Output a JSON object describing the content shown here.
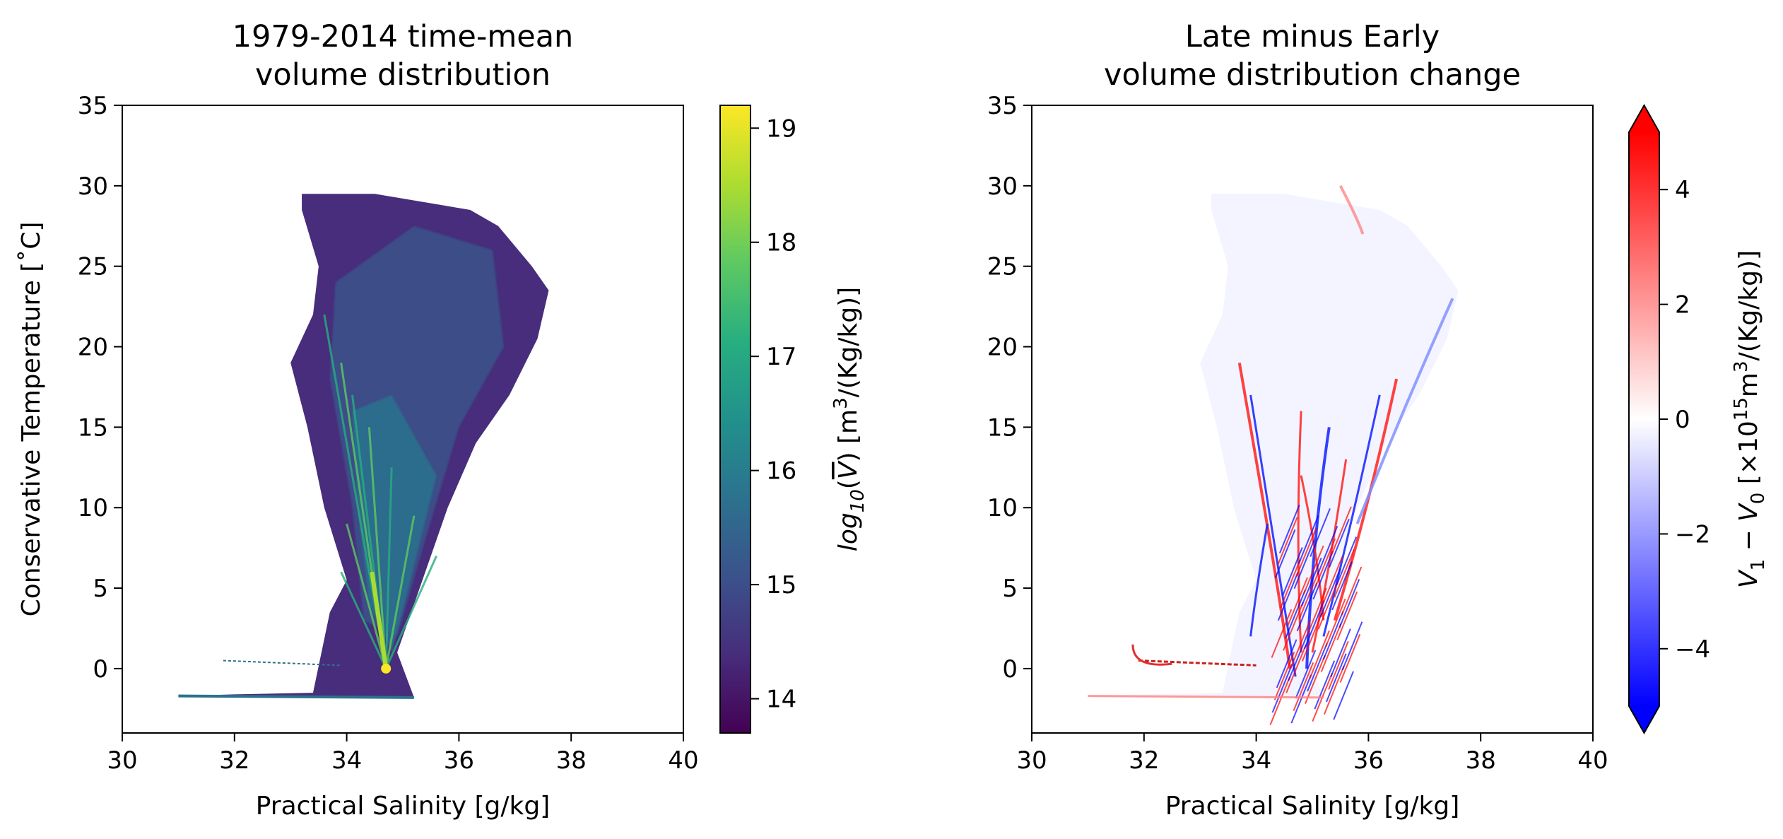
{
  "figure": {
    "left_title_line1": "1979-2014 time-mean",
    "left_title_line2": "volume distribution",
    "right_title_line1": "Late minus Early",
    "right_title_line2": "volume distribution change",
    "xlabel": "Practical Salinity [g/kg]",
    "ylabel": "Conservative Temperature [˚C]",
    "left_cbar_label": "log10(V̅) [m3/(Kg/kg)]",
    "right_cbar_label": "V1 − V0 [×1015m3/(Kg/kg)]"
  },
  "colors": {
    "viridis": [
      "#440154",
      "#472d7b",
      "#3b528b",
      "#2c728e",
      "#21918c",
      "#28ae80",
      "#5ec962",
      "#addc30",
      "#fde725"
    ],
    "bwr": [
      "#0000ff",
      "#ffffff",
      "#ff0000"
    ]
  },
  "chart_data": [
    {
      "type": "heatmap",
      "title": "1979-2014 time-mean\nvolume distribution",
      "xlabel": "Practical Salinity [g/kg]",
      "ylabel": "Conservative Temperature [˚C]",
      "xlim": [
        30,
        40
      ],
      "ylim": [
        -4,
        35
      ],
      "xticks": [
        30,
        32,
        34,
        36,
        38,
        40
      ],
      "yticks": [
        0,
        5,
        10,
        15,
        20,
        25,
        30,
        35
      ],
      "colorbar": {
        "label": "log10(V̅) [m3/(Kg/kg)]",
        "colormap": "viridis",
        "range": [
          13.7,
          19.2
        ],
        "ticks": [
          14,
          15,
          16,
          17,
          18,
          19
        ]
      },
      "occupied_region_outline": [
        [
          33.2,
          29.5
        ],
        [
          34.5,
          29.5
        ],
        [
          36.2,
          28.5
        ],
        [
          36.7,
          27.5
        ],
        [
          37.3,
          25.0
        ],
        [
          37.6,
          23.5
        ],
        [
          37.4,
          20.5
        ],
        [
          36.9,
          17.0
        ],
        [
          36.3,
          14.0
        ],
        [
          35.8,
          10.0
        ],
        [
          35.3,
          5.0
        ],
        [
          34.9,
          1.0
        ],
        [
          35.2,
          -1.8
        ],
        [
          34.2,
          -1.8
        ],
        [
          31.0,
          -1.7
        ],
        [
          32.0,
          -1.6
        ],
        [
          33.4,
          -1.5
        ],
        [
          33.7,
          3.5
        ],
        [
          34.0,
          5.5
        ],
        [
          33.6,
          10.0
        ],
        [
          33.3,
          15.0
        ],
        [
          33.0,
          19.0
        ],
        [
          33.4,
          22.0
        ],
        [
          33.5,
          25.0
        ],
        [
          33.2,
          28.5
        ]
      ],
      "maximum": {
        "salinity": 34.7,
        "temperature": 0.0,
        "log10_volume": 19.2
      }
    },
    {
      "type": "heatmap",
      "title": "Late minus Early\nvolume distribution change",
      "xlabel": "Practical Salinity [g/kg]",
      "xlim": [
        30,
        40
      ],
      "ylim": [
        -4,
        35
      ],
      "xticks": [
        30,
        32,
        34,
        36,
        38,
        40
      ],
      "yticks": [
        0,
        5,
        10,
        15,
        20,
        25,
        30,
        35
      ],
      "colorbar": {
        "label": "V1 − V0 [×1015m3/(Kg/kg)]",
        "colormap": "bwr",
        "range": [
          -5,
          5
        ],
        "extend": "both",
        "ticks": [
          -4,
          -2,
          0,
          2,
          4
        ]
      },
      "strongest_change_region": {
        "salinity": [
          34.0,
          36.0
        ],
        "temperature": [
          -1.5,
          17.0
        ]
      }
    }
  ]
}
